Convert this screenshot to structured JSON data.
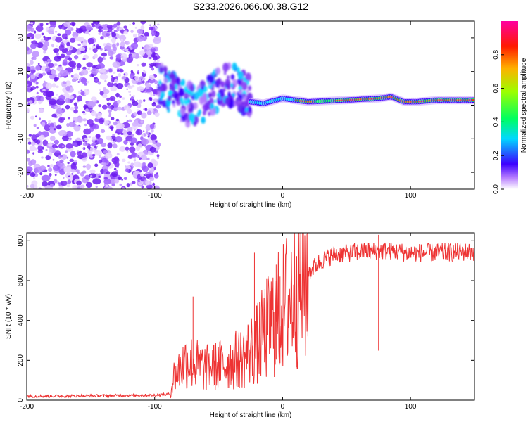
{
  "title": "S233.2026.066.00.38.G12",
  "chart_data": [
    {
      "type": "heatmap",
      "xlabel": "Height of straight line (km)",
      "ylabel": "Frequency (Hz)",
      "xlim": [
        -200,
        150
      ],
      "ylim": [
        -25,
        25
      ],
      "xticks": [
        -200,
        -100,
        0,
        100
      ],
      "yticks": [
        -20,
        -10,
        0,
        10,
        20
      ],
      "colorbar": {
        "label": "Normalized spectral amplitude",
        "range": [
          0,
          1
        ],
        "ticks": [
          0.0,
          0.2,
          0.4,
          0.6,
          0.8
        ]
      },
      "description_points": {
        "noise_region_km": [
          -200,
          -97
        ],
        "scattered_region_km": [
          -97,
          -25
        ],
        "stable_track_km": [
          -25,
          150
        ],
        "stable_track_freq_hz": [
          [
            -25,
            1.0
          ],
          [
            -15,
            0.5
          ],
          [
            0,
            2.0
          ],
          [
            20,
            1.0
          ],
          [
            50,
            1.5
          ],
          [
            75,
            2.0
          ],
          [
            85,
            2.5
          ],
          [
            95,
            1.0
          ],
          [
            105,
            1.0
          ],
          [
            120,
            1.5
          ],
          [
            150,
            1.5
          ]
        ]
      }
    },
    {
      "type": "line",
      "xlabel": "Height of straight line (km)",
      "ylabel": "SNR (10 * v/v)",
      "xlim": [
        -200,
        150
      ],
      "ylim": [
        0,
        840
      ],
      "xticks": [
        -200,
        -100,
        0,
        100
      ],
      "yticks": [
        0,
        200,
        400,
        600,
        800
      ],
      "series": [
        {
          "name": "SNR",
          "color": "#ee3333",
          "envelope_points": [
            [
              -200,
              20
            ],
            [
              -150,
              22
            ],
            [
              -100,
              25
            ],
            [
              -88,
              30
            ],
            [
              -85,
              120
            ],
            [
              -75,
              200
            ],
            [
              -60,
              160
            ],
            [
              -45,
              180
            ],
            [
              -30,
              220
            ],
            [
              -20,
              280
            ],
            [
              -10,
              380
            ],
            [
              0,
              460
            ],
            [
              10,
              560
            ],
            [
              20,
              640
            ],
            [
              30,
              700
            ],
            [
              40,
              730
            ],
            [
              60,
              745
            ],
            [
              80,
              750
            ],
            [
              100,
              740
            ],
            [
              120,
              740
            ],
            [
              150,
              745
            ]
          ],
          "notable_peaks": [
            [
              -70,
              520
            ],
            [
              -22,
              740
            ],
            [
              -5,
              680
            ],
            [
              -2,
              620
            ],
            [
              75,
              830
            ]
          ]
        }
      ]
    }
  ]
}
